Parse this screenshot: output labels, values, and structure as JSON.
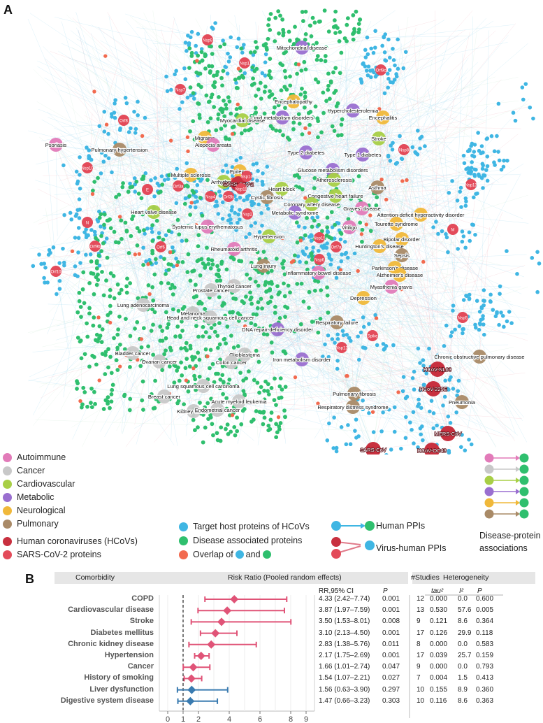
{
  "panel_a": {
    "letter": "A",
    "colors": {
      "autoimmune": "#e27bb9",
      "cancer": "#c8c8c8",
      "cardiovascular": "#a8cf46",
      "metabolic": "#9a6fd0",
      "neurological": "#f0b83a",
      "pulmonary": "#a98a67",
      "hcov": "#c8303f",
      "sars_protein": "#e34b5a",
      "target": "#3fb6e3",
      "disease_protein": "#2fbf6e",
      "overlap": "#f26a4f"
    },
    "legend": {
      "autoimmune": "Autoimmune",
      "cancer": "Cancer",
      "cardiovascular": "Cardiovascular",
      "metabolic": "Metabolic",
      "neurological": "Neurological",
      "pulmonary": "Pulmonary",
      "hcov": "Human coronaviruses (HCoVs)",
      "sars": "SARS-CoV-2 proteins",
      "target": "Target host proteins of HCoVs",
      "disease": "Disease associated proteins",
      "overlap_prefix": "Overlap of",
      "overlap_and": "and",
      "human_ppi": "Human PPIs",
      "virus_ppi": "Virus-human PPIs",
      "dp_line1": "Disease-protein",
      "dp_line2": "associations"
    },
    "diseases": [
      {
        "label": "Mitochondrial disease",
        "cat": "metabolic"
      },
      {
        "label": "Encephalopathy",
        "cat": "neurological"
      },
      {
        "label": "Hypercholesterolemia",
        "cat": "metabolic"
      },
      {
        "label": "Lipid metabolism disorders",
        "cat": "metabolic"
      },
      {
        "label": "Encephalitis",
        "cat": "neurological"
      },
      {
        "label": "Myocardial disease",
        "cat": "cardiovascular"
      },
      {
        "label": "Migraine",
        "cat": "neurological"
      },
      {
        "label": "Stroke",
        "cat": "cardiovascular"
      },
      {
        "label": "Psoriasis",
        "cat": "autoimmune"
      },
      {
        "label": "Alopecia areata",
        "cat": "autoimmune"
      },
      {
        "label": "Pulmonary hypertension",
        "cat": "pulmonary"
      },
      {
        "label": "Type 2 diabetes",
        "cat": "metabolic"
      },
      {
        "label": "Type 1 diabetes",
        "cat": "metabolic"
      },
      {
        "label": "Epilepsy",
        "cat": "neurological"
      },
      {
        "label": "Glucose metabolism disorders",
        "cat": "metabolic"
      },
      {
        "label": "Atherosclerosis",
        "cat": "cardiovascular"
      },
      {
        "label": "Multiple sclerosis",
        "cat": "neurological"
      },
      {
        "label": "Arrhythmia",
        "cat": "cardiovascular"
      },
      {
        "label": "Heart block",
        "cat": "cardiovascular"
      },
      {
        "label": "Congestive heart failure",
        "cat": "cardiovascular"
      },
      {
        "label": "Asthma",
        "cat": "pulmonary"
      },
      {
        "label": "Cystic fibrosis",
        "cat": "pulmonary"
      },
      {
        "label": "Coronary artery disease",
        "cat": "cardiovascular"
      },
      {
        "label": "Graves' disease",
        "cat": "autoimmune"
      },
      {
        "label": "Heart valve disease",
        "cat": "cardiovascular"
      },
      {
        "label": "Metabolic syndrome",
        "cat": "metabolic"
      },
      {
        "label": "Attention-deficit hyperactivity disorder",
        "cat": "neurological"
      },
      {
        "label": "Tourette syndrome",
        "cat": "neurological"
      },
      {
        "label": "Systemic lupus erythematosus",
        "cat": "autoimmune"
      },
      {
        "label": "Vitiligo",
        "cat": "autoimmune"
      },
      {
        "label": "Hypertension",
        "cat": "cardiovascular"
      },
      {
        "label": "Bipolar disorder",
        "cat": "neurological"
      },
      {
        "label": "Rheumatoid arthritis",
        "cat": "autoimmune"
      },
      {
        "label": "Huntington's disease",
        "cat": "neurological"
      },
      {
        "label": "Sepsis",
        "cat": "pulmonary"
      },
      {
        "label": "Lung injury",
        "cat": "pulmonary"
      },
      {
        "label": "Parkinson's disease",
        "cat": "neurological"
      },
      {
        "label": "Alzheimer's disease",
        "cat": "neurological"
      },
      {
        "label": "Inflammatory bowel disease",
        "cat": "autoimmune"
      },
      {
        "label": "Myasthenia gravis",
        "cat": "autoimmune"
      },
      {
        "label": "Depression",
        "cat": "neurological"
      },
      {
        "label": "Prostate cancer",
        "cat": "cancer"
      },
      {
        "label": "Thyroid cancer",
        "cat": "cancer"
      },
      {
        "label": "Lung adenocarcinoma",
        "cat": "cancer"
      },
      {
        "label": "Melanoma",
        "cat": "cancer"
      },
      {
        "label": "Head and neck squamous cell cancer",
        "cat": "cancer"
      },
      {
        "label": "DNA repair-deficiency disorder",
        "cat": "metabolic"
      },
      {
        "label": "Respiratory failure",
        "cat": "pulmonary"
      },
      {
        "label": "Bladder cancer",
        "cat": "cancer"
      },
      {
        "label": "Glioblastoma",
        "cat": "cancer"
      },
      {
        "label": "Ovarian cancer",
        "cat": "cancer"
      },
      {
        "label": "Colon cancer",
        "cat": "cancer"
      },
      {
        "label": "Iron metabolism disorder",
        "cat": "metabolic"
      },
      {
        "label": "Chronic obstructive pulmonary disease",
        "cat": "pulmonary"
      },
      {
        "label": "Lung squamous cell carcinoma",
        "cat": "cancer"
      },
      {
        "label": "Pulmonary fibrosis",
        "cat": "pulmonary"
      },
      {
        "label": "Breast cancer",
        "cat": "cancer"
      },
      {
        "label": "Acute myeloid leukemia",
        "cat": "cancer"
      },
      {
        "label": "Respiratory distress syndrome",
        "cat": "pulmonary"
      },
      {
        "label": "Kidney cancer",
        "cat": "cancer"
      },
      {
        "label": "Endometrial cancer",
        "cat": "cancer"
      },
      {
        "label": "Pneumonia",
        "cat": "pulmonary"
      }
    ],
    "hcovs": [
      "SARS-CoV-2",
      "HCoV-NL63",
      "HCoV-229E",
      "MERS-CoV",
      "SARS-CoV",
      "HCoV-OC43"
    ],
    "proteins": [
      "Nsp9",
      "Nsp1",
      "Orf9c",
      "Nsp7",
      "Orf8",
      "Nsp8",
      "Nsp13",
      "Nsp10",
      "E",
      "Orf3a",
      "Nsp14",
      "Orf3b",
      "Nsp11",
      "Nsp2",
      "Nsp4",
      "N",
      "Orf6",
      "Orf9b",
      "M",
      "Nsp15",
      "Orf7a",
      "Nsp6",
      "Orf10",
      "Nsp5",
      "Spike",
      "Nsp12"
    ]
  },
  "panel_b": {
    "letter": "B",
    "headers": {
      "comorbidity": "Comorbidity",
      "risk": "Risk Ratio (Pooled random effects)",
      "studies": "#Studies",
      "heterogeneity": "Heterogeneity",
      "rr_ci": "RR,95% CI",
      "p": "P",
      "tau": "tau²",
      "i2": "I²",
      "p2": "P"
    },
    "x_ticks": [
      "0",
      "1",
      "2",
      "4",
      "6",
      "8",
      "9"
    ],
    "rows": [
      {
        "name": "COPD",
        "rr_text": "4.33 (2.42–7.74)",
        "p": "0.001",
        "studies": "12",
        "tau": "0.000",
        "i2": "0.0",
        "ph": "0.600",
        "group": "sig"
      },
      {
        "name": "Cardiovascular disease",
        "rr_text": "3.87 (1.97–7.59)",
        "p": "0.001",
        "studies": "13",
        "tau": "0.530",
        "i2": "57.6",
        "ph": "0.005",
        "group": "sig"
      },
      {
        "name": "Stroke",
        "rr_text": "3.50 (1.53–8.01)",
        "p": "0.008",
        "studies": "9",
        "tau": "0.121",
        "i2": "8.6",
        "ph": "0.364",
        "group": "sig"
      },
      {
        "name": "Diabetes mellitus",
        "rr_text": "3.10 (2.13–4.50)",
        "p": "0.001",
        "studies": "17",
        "tau": "0.126",
        "i2": "29.9",
        "ph": "0.118",
        "group": "sig"
      },
      {
        "name": "Chronic kidney disease",
        "rr_text": "2.83 (1.38–5.76)",
        "p": "0.011",
        "studies": "8",
        "tau": "0.000",
        "i2": "0.0",
        "ph": "0.583",
        "group": "sig"
      },
      {
        "name": "Hypertension",
        "rr_text": "2.17 (1.75–2.69)",
        "p": "0.001",
        "studies": "17",
        "tau": "0.039",
        "i2": "25.7",
        "ph": "0.159",
        "group": "sig"
      },
      {
        "name": "Cancer",
        "rr_text": "1.66 (1.01–2.74)",
        "p": "0.047",
        "studies": "9",
        "tau": "0.000",
        "i2": "0.0",
        "ph": "0.793",
        "group": "sig"
      },
      {
        "name": "History of smoking",
        "rr_text": "1.54 (1.07–2.21)",
        "p": "0.027",
        "studies": "7",
        "tau": "0.004",
        "i2": "1.5",
        "ph": "0.413",
        "group": "sig"
      },
      {
        "name": "Liver dysfunction",
        "rr_text": "1.56 (0.63–3.90)",
        "p": "0.297",
        "studies": "10",
        "tau": "0.155",
        "i2": "8.9",
        "ph": "0.360",
        "group": "ns"
      },
      {
        "name": "Digestive system disease",
        "rr_text": "1.47 (0.66–3.23)",
        "p": "0.303",
        "studies": "10",
        "tau": "0.116",
        "i2": "8.6",
        "ph": "0.363",
        "group": "ns"
      }
    ],
    "chart_data": {
      "type": "scatter",
      "categories": [
        "COPD",
        "Cardiovascular disease",
        "Stroke",
        "Diabetes mellitus",
        "Chronic kidney disease",
        "Hypertension",
        "Cancer",
        "History of smoking",
        "Liver dysfunction",
        "Digestive system disease"
      ],
      "values": [
        4.33,
        3.87,
        3.5,
        3.1,
        2.83,
        2.17,
        1.66,
        1.54,
        1.56,
        1.47
      ],
      "ci_low": [
        2.42,
        1.97,
        1.53,
        2.13,
        1.38,
        1.75,
        1.01,
        1.07,
        0.63,
        0.66
      ],
      "ci_high": [
        7.74,
        7.59,
        8.01,
        4.5,
        5.76,
        2.69,
        2.74,
        2.21,
        3.9,
        3.23
      ],
      "xticks": [
        0,
        1,
        2,
        4,
        6,
        8,
        9
      ],
      "xlim": [
        0,
        9
      ],
      "reference_line": 1,
      "colors": {
        "sig": "#e05377",
        "ns": "#3a7bb0"
      }
    }
  }
}
